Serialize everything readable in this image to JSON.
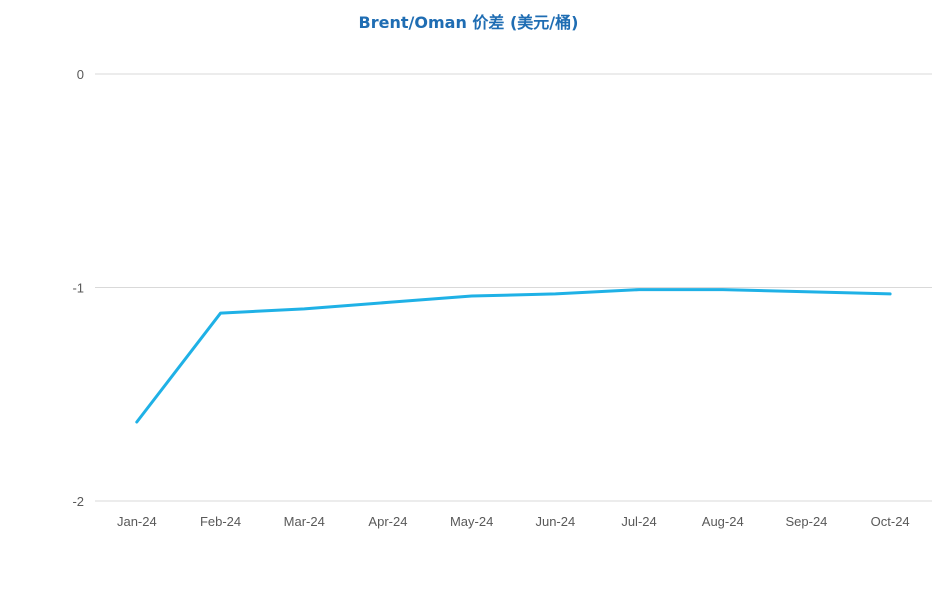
{
  "chart_data": {
    "type": "line",
    "title": "Brent/Oman 价差 (美元/桶)",
    "xlabel": "",
    "ylabel": "",
    "categories": [
      "Jan-24",
      "Feb-24",
      "Mar-24",
      "Apr-24",
      "May-24",
      "Jun-24",
      "Jul-24",
      "Aug-24",
      "Sep-24",
      "Oct-24"
    ],
    "series": [
      {
        "values": [
          -1.63,
          -1.12,
          -1.1,
          -1.07,
          -1.04,
          -1.03,
          -1.01,
          -1.01,
          -1.02,
          -1.03
        ],
        "color": "#1fb1e6"
      }
    ],
    "ylim": [
      -2,
      0
    ],
    "yticks": [
      "0",
      "-1",
      "-2"
    ],
    "ytick_values": [
      0,
      -1,
      -2
    ],
    "grid": true,
    "legend": "none"
  }
}
